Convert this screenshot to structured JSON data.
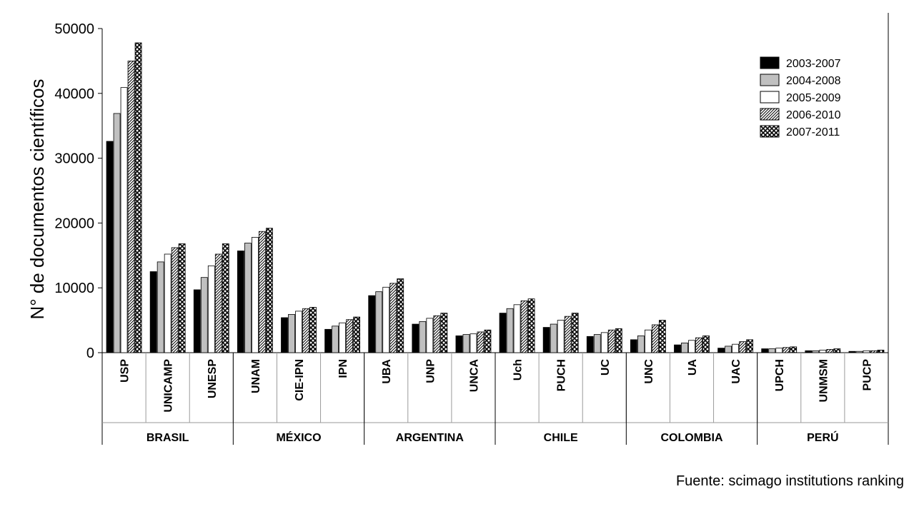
{
  "chart_data": {
    "type": "bar",
    "ylabel": "N° de documentos científicos",
    "ylim": [
      0,
      50000
    ],
    "yticks": [
      0,
      10000,
      20000,
      30000,
      40000,
      50000
    ],
    "grid": false,
    "legend_position": "top-right",
    "categories": [
      "USP",
      "UNICAMP",
      "UNESP",
      "UNAM",
      "CIE-IPN",
      "IPN",
      "UBA",
      "UNP",
      "UNCA",
      "Uch",
      "PUCH",
      "UC",
      "UNC",
      "UA",
      "UAC",
      "UPCH",
      "UNMSM",
      "PUCP"
    ],
    "groups": [
      {
        "name": "BRASIL",
        "size": 3
      },
      {
        "name": "MÉXICO",
        "size": 3
      },
      {
        "name": "ARGENTINA",
        "size": 3
      },
      {
        "name": "CHILE",
        "size": 3
      },
      {
        "name": "COLOMBIA",
        "size": 3
      },
      {
        "name": "PERÚ",
        "size": 3
      }
    ],
    "series": [
      {
        "name": "2003-2007",
        "pattern": "black",
        "values": [
          32600,
          12500,
          9700,
          15700,
          5400,
          3600,
          8800,
          4400,
          2600,
          6100,
          3900,
          2500,
          2000,
          1200,
          700,
          600,
          300,
          200
        ]
      },
      {
        "name": "2004-2008",
        "pattern": "gray",
        "values": [
          36900,
          14000,
          11600,
          16900,
          5900,
          4100,
          9400,
          4800,
          2800,
          6800,
          4400,
          2800,
          2600,
          1500,
          1000,
          600,
          300,
          200
        ]
      },
      {
        "name": "2005-2009",
        "pattern": "white",
        "values": [
          40900,
          15200,
          13400,
          17800,
          6400,
          4600,
          10100,
          5300,
          2900,
          7400,
          5000,
          3100,
          3500,
          1900,
          1300,
          700,
          400,
          300
        ]
      },
      {
        "name": "2006-2010",
        "pattern": "hatch",
        "values": [
          45000,
          16200,
          15200,
          18700,
          6800,
          5100,
          10700,
          5700,
          3200,
          8000,
          5600,
          3500,
          4300,
          2300,
          1700,
          800,
          500,
          300
        ]
      },
      {
        "name": "2007-2011",
        "pattern": "checker",
        "values": [
          47800,
          16800,
          16800,
          19200,
          7000,
          5500,
          11400,
          6100,
          3500,
          8300,
          6100,
          3700,
          5000,
          2600,
          2000,
          900,
          600,
          400
        ]
      }
    ]
  },
  "source_text": "Fuente: scimago institutions ranking"
}
